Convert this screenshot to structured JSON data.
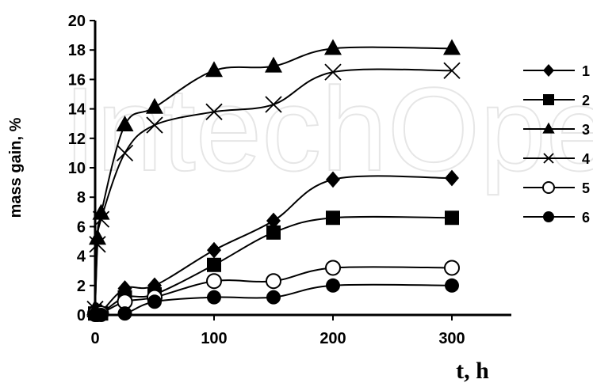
{
  "watermark": "IntechOpen",
  "chart_data": {
    "type": "line",
    "xlabel": "t, h",
    "ylabel": "mass gain, %",
    "xlim": [
      0,
      350
    ],
    "ylim": [
      0,
      20
    ],
    "xticks": [
      0,
      100,
      200,
      300
    ],
    "yticks": [
      0,
      2,
      4,
      6,
      8,
      10,
      12,
      14,
      16,
      18,
      20
    ],
    "grid": false,
    "legend_position": "right",
    "series": [
      {
        "name": "1",
        "marker": "diamond",
        "x": [
          0,
          2,
          5,
          25,
          50,
          100,
          150,
          200,
          300
        ],
        "y": [
          0.3,
          0.3,
          0.2,
          1.8,
          2.0,
          4.4,
          6.4,
          9.2,
          9.3
        ]
      },
      {
        "name": "2",
        "marker": "square",
        "x": [
          0,
          2,
          5,
          25,
          50,
          100,
          150,
          200,
          300
        ],
        "y": [
          0.1,
          0.1,
          0.1,
          1.2,
          1.4,
          3.4,
          5.6,
          6.6,
          6.6
        ]
      },
      {
        "name": "3",
        "marker": "triangle",
        "x": [
          0,
          2,
          5,
          25,
          50,
          100,
          150,
          200,
          300
        ],
        "y": [
          0.4,
          5.2,
          6.9,
          12.9,
          14.1,
          16.6,
          16.9,
          18.1,
          18.1
        ]
      },
      {
        "name": "4",
        "marker": "x",
        "x": [
          0,
          2,
          5,
          25,
          50,
          100,
          150,
          200,
          300
        ],
        "y": [
          0.4,
          4.8,
          6.5,
          11.0,
          12.9,
          13.8,
          14.3,
          16.5,
          16.6
        ]
      },
      {
        "name": "5",
        "marker": "open-circle",
        "x": [
          0,
          2,
          5,
          25,
          50,
          100,
          150,
          200,
          300
        ],
        "y": [
          0.1,
          0.1,
          0.1,
          0.9,
          1.2,
          2.3,
          2.3,
          3.2,
          3.2
        ]
      },
      {
        "name": "6",
        "marker": "filled-circle",
        "x": [
          0,
          2,
          5,
          25,
          50,
          100,
          150,
          200,
          300
        ],
        "y": [
          0.0,
          0.0,
          0.0,
          0.1,
          0.9,
          1.2,
          1.2,
          2.0,
          2.0
        ]
      }
    ]
  }
}
